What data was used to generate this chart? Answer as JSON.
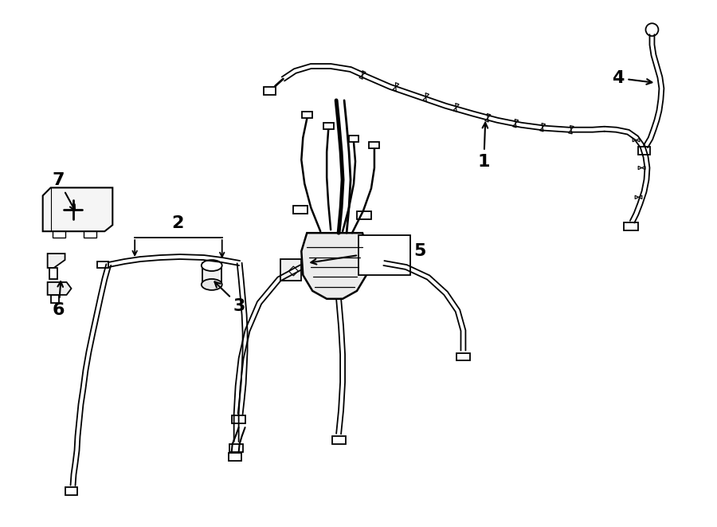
{
  "background_color": "#ffffff",
  "line_color": "#000000",
  "label_fontsize": 16,
  "label_color": "#000000"
}
